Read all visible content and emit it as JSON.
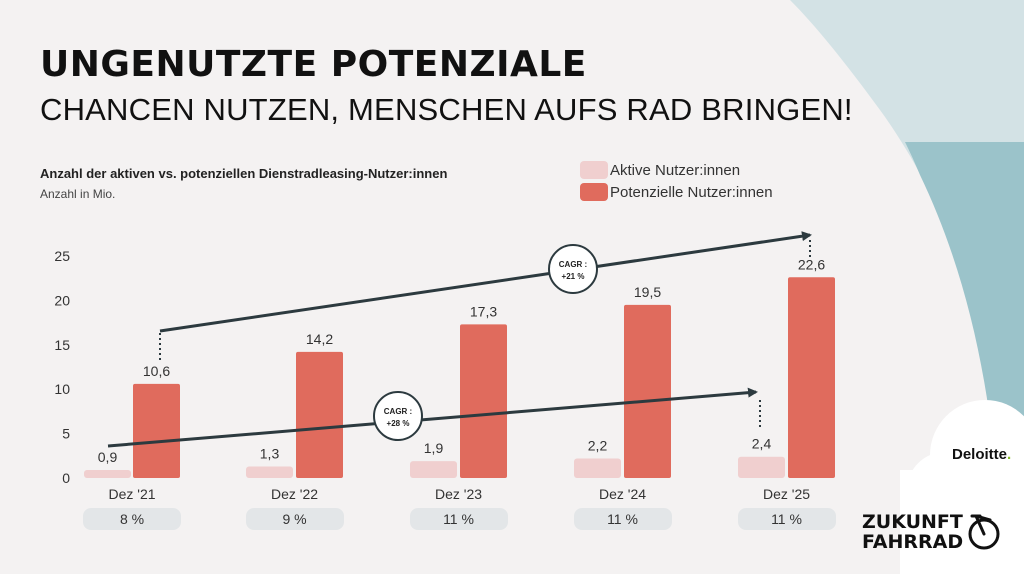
{
  "header": {
    "title": "UNGENUTZTE POTENZIALE",
    "subtitle": "CHANCEN NUTZEN, MENSCHEN AUFS RAD BRINGEN!"
  },
  "legend": {
    "items": [
      {
        "label": "Aktive Nutzer:innen",
        "color": "#f0cfcf"
      },
      {
        "label": "Potenzielle Nutzer:innen",
        "color": "#e06b5d"
      }
    ]
  },
  "chart_data": {
    "type": "bar",
    "title": "Anzahl der aktiven vs. potenziellen Dienstradleasing-Nutzer:innen",
    "subtitle": "Anzahl in Mio.",
    "categories": [
      "Dez '21",
      "Dez '22",
      "Dez '23",
      "Dez '24",
      "Dez '25"
    ],
    "series": [
      {
        "name": "Aktive Nutzer:innen",
        "values": [
          0.9,
          1.3,
          1.9,
          2.2,
          2.4
        ],
        "labels": [
          "0,9",
          "1,3",
          "1,9",
          "2,2",
          "2,4"
        ],
        "color": "#f0cfcf"
      },
      {
        "name": "Potenzielle Nutzer:innen",
        "values": [
          10.6,
          14.2,
          17.3,
          19.5,
          22.6
        ],
        "labels": [
          "10,6",
          "14,2",
          "17,3",
          "19,5",
          "22,6"
        ],
        "color": "#e06b5d"
      }
    ],
    "ylim": [
      0,
      25
    ],
    "yticks": [
      0,
      5,
      10,
      15,
      20,
      25
    ],
    "shares": [
      "8 %",
      "9 %",
      "11 %",
      "11 %",
      "11 %"
    ],
    "cagr": [
      {
        "title": "CAGR :",
        "value": "+21 %",
        "series": "Potenzielle Nutzer:innen"
      },
      {
        "title": "CAGR :",
        "value": "+28 %",
        "series": "Aktive Nutzer:innen"
      }
    ],
    "grid": false,
    "legend_position": "top-right"
  },
  "branding": {
    "deloitte": "Deloitte",
    "deloitte_dot": ".",
    "zukunft_line1": "ZUKUNFT",
    "zukunft_line2": "FAHRRAD"
  },
  "colors": {
    "background": "#f4f2f2",
    "teal_light": "#d3e2e5",
    "teal": "#9bc3ca",
    "accent": "#e06b5d",
    "arrow": "#2c3a3f"
  }
}
